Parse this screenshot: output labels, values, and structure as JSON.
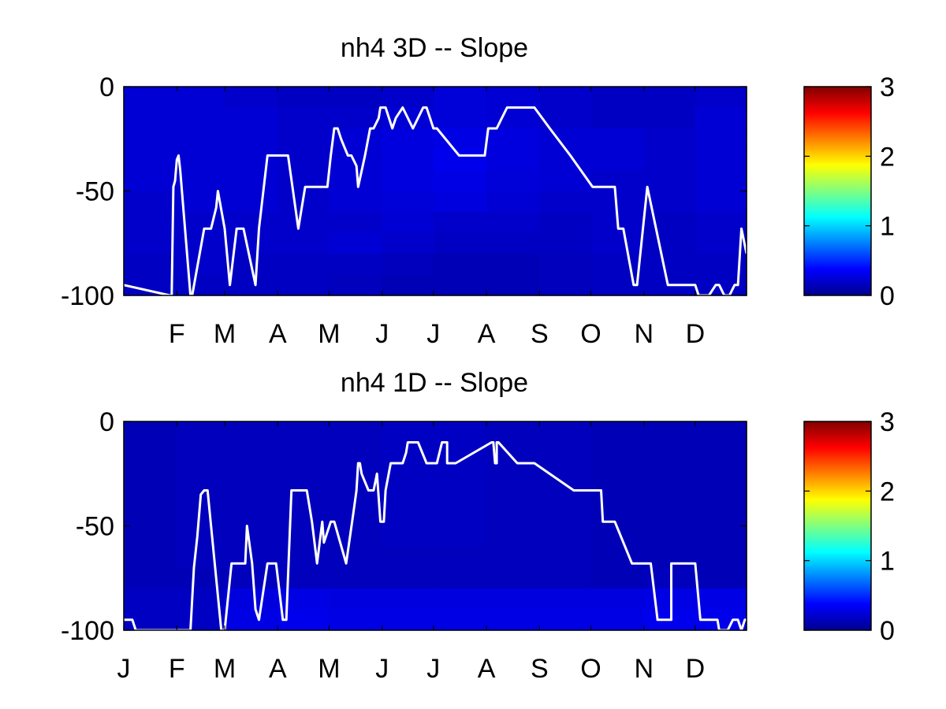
{
  "chart_data": [
    {
      "type": "heatmap",
      "title": "nh4 3D   -- Slope",
      "ylim": [
        -100,
        0
      ],
      "y_ticks": [
        "0",
        "-50",
        "-100"
      ],
      "y_tick_values": [
        0,
        -50,
        -100
      ],
      "x_ticks": [
        "F",
        "M",
        "A",
        "M",
        "J",
        "J",
        "A",
        "S",
        "O",
        "N",
        "D"
      ],
      "x_tick_months": [
        2,
        3,
        4,
        5,
        6,
        7,
        8,
        9,
        10,
        11,
        12
      ],
      "colorbar": {
        "min": 0,
        "max": 3,
        "ticks": [
          "0",
          "1",
          "2",
          "3"
        ],
        "tick_values": [
          0,
          1,
          2,
          3
        ],
        "colormap": "jet"
      },
      "depth_bins": [
        -5,
        -15,
        -25,
        -35,
        -45,
        -55,
        -65,
        -75,
        -85,
        -95
      ],
      "months": [
        "Jan",
        "Feb",
        "Mar",
        "Apr",
        "May",
        "Jun",
        "Jul",
        "Aug",
        "Sep",
        "Oct",
        "Nov",
        "Dec"
      ],
      "values": [
        [
          0.25,
          0.25,
          0.22,
          0.2,
          0.2,
          0.22,
          0.26,
          0.25,
          0.22,
          0.2,
          0.2,
          0.22
        ],
        [
          0.25,
          0.25,
          0.25,
          0.22,
          0.22,
          0.25,
          0.26,
          0.25,
          0.22,
          0.2,
          0.2,
          0.25
        ],
        [
          0.25,
          0.25,
          0.25,
          0.22,
          0.25,
          0.28,
          0.3,
          0.28,
          0.25,
          0.25,
          0.22,
          0.25
        ],
        [
          0.25,
          0.25,
          0.25,
          0.22,
          0.25,
          0.28,
          0.32,
          0.28,
          0.25,
          0.25,
          0.22,
          0.25
        ],
        [
          0.25,
          0.25,
          0.25,
          0.22,
          0.25,
          0.28,
          0.3,
          0.26,
          0.25,
          0.22,
          0.22,
          0.25
        ],
        [
          0.22,
          0.25,
          0.25,
          0.22,
          0.25,
          0.26,
          0.28,
          0.25,
          0.22,
          0.22,
          0.22,
          0.25
        ],
        [
          0.22,
          0.22,
          0.22,
          0.22,
          0.22,
          0.25,
          0.22,
          0.22,
          0.2,
          0.22,
          0.2,
          0.22
        ],
        [
          0.22,
          0.22,
          0.22,
          0.22,
          0.25,
          0.22,
          0.2,
          0.2,
          0.2,
          0.22,
          0.2,
          0.22
        ],
        [
          0.2,
          0.22,
          0.2,
          0.2,
          0.2,
          0.18,
          0.16,
          0.16,
          0.18,
          0.2,
          0.2,
          0.2
        ],
        [
          0.2,
          0.2,
          0.2,
          0.2,
          0.18,
          0.16,
          0.16,
          0.16,
          0.18,
          0.2,
          0.2,
          0.2
        ]
      ],
      "line": {
        "color": "#ffffff",
        "x_day": [
          1,
          28,
          29,
          30,
          31,
          32,
          33,
          34,
          40,
          41,
          48,
          50,
          52,
          55,
          56,
          60,
          63,
          67,
          68,
          71,
          78,
          80,
          85,
          88,
          96,
          97,
          103,
          107,
          108,
          115,
          120,
          122,
          124,
          126,
          128,
          132,
          134,
          137,
          138,
          142,
          145,
          147,
          150,
          151,
          154,
          156,
          158,
          160,
          164,
          170,
          176,
          178,
          180,
          182,
          184,
          197,
          212,
          214,
          219,
          225,
          227,
          231,
          241,
          250,
          262,
          275,
          279,
          288,
          290,
          293,
          299,
          301,
          307,
          319,
          335,
          337,
          339,
          341,
          343,
          347,
          349,
          352,
          355,
          358,
          360,
          362,
          365
        ],
        "y": [
          -95,
          -100,
          -100,
          -48,
          -45,
          -35,
          -33,
          -40,
          -100,
          -100,
          -68,
          -68,
          -68,
          -58,
          -50,
          -68,
          -95,
          -68,
          -68,
          -68,
          -95,
          -68,
          -33,
          -33,
          -33,
          -33,
          -68,
          -48,
          -48,
          -48,
          -48,
          -33,
          -20,
          -20,
          -25,
          -33,
          -33,
          -38,
          -48,
          -33,
          -20,
          -20,
          -15,
          -10,
          -10,
          -15,
          -20,
          -15,
          -10,
          -20,
          -10,
          -10,
          -15,
          -20,
          -20,
          -33,
          -33,
          -20,
          -20,
          -10,
          -10,
          -10,
          -10,
          -20,
          -33,
          -48,
          -48,
          -48,
          -68,
          -68,
          -95,
          -95,
          -48,
          -95,
          -95,
          -100,
          -100,
          -100,
          -100,
          -95,
          -95,
          -100,
          -100,
          -95,
          -95,
          -68,
          -80
        ]
      }
    },
    {
      "type": "heatmap",
      "title": "nh4 1D   -- Slope",
      "ylim": [
        -100,
        0
      ],
      "y_ticks": [
        "0",
        "-50",
        "-100"
      ],
      "y_tick_values": [
        0,
        -50,
        -100
      ],
      "x_ticks": [
        "J",
        "F",
        "M",
        "A",
        "M",
        "J",
        "J",
        "A",
        "S",
        "O",
        "N",
        "D"
      ],
      "x_tick_months": [
        1,
        2,
        3,
        4,
        5,
        6,
        7,
        8,
        9,
        10,
        11,
        12
      ],
      "colorbar": {
        "min": 0,
        "max": 3,
        "ticks": [
          "0",
          "1",
          "2",
          "3"
        ],
        "tick_values": [
          0,
          1,
          2,
          3
        ],
        "colormap": "jet"
      },
      "depth_bins": [
        -5,
        -15,
        -25,
        -35,
        -45,
        -55,
        -65,
        -75,
        -85,
        -95
      ],
      "months": [
        "Jan",
        "Feb",
        "Mar",
        "Apr",
        "May",
        "Jun",
        "Jul",
        "Aug",
        "Sep",
        "Oct",
        "Nov",
        "Dec"
      ],
      "values": [
        [
          0.16,
          0.18,
          0.18,
          0.18,
          0.18,
          0.2,
          0.2,
          0.18,
          0.18,
          0.16,
          0.16,
          0.16
        ],
        [
          0.16,
          0.18,
          0.18,
          0.18,
          0.18,
          0.2,
          0.2,
          0.18,
          0.18,
          0.16,
          0.16,
          0.16
        ],
        [
          0.16,
          0.18,
          0.18,
          0.18,
          0.18,
          0.2,
          0.2,
          0.18,
          0.18,
          0.16,
          0.16,
          0.16
        ],
        [
          0.16,
          0.18,
          0.18,
          0.18,
          0.18,
          0.2,
          0.2,
          0.18,
          0.18,
          0.16,
          0.16,
          0.16
        ],
        [
          0.16,
          0.18,
          0.18,
          0.18,
          0.18,
          0.2,
          0.2,
          0.18,
          0.18,
          0.16,
          0.16,
          0.16
        ],
        [
          0.16,
          0.18,
          0.18,
          0.18,
          0.18,
          0.2,
          0.2,
          0.18,
          0.18,
          0.16,
          0.16,
          0.16
        ],
        [
          0.16,
          0.18,
          0.18,
          0.18,
          0.18,
          0.18,
          0.18,
          0.18,
          0.18,
          0.16,
          0.16,
          0.16
        ],
        [
          0.16,
          0.16,
          0.18,
          0.18,
          0.18,
          0.18,
          0.18,
          0.18,
          0.18,
          0.16,
          0.18,
          0.16
        ],
        [
          0.2,
          0.2,
          0.28,
          0.3,
          0.28,
          0.28,
          0.28,
          0.28,
          0.28,
          0.28,
          0.3,
          0.3
        ],
        [
          0.2,
          0.2,
          0.3,
          0.32,
          0.3,
          0.3,
          0.3,
          0.3,
          0.3,
          0.3,
          0.32,
          0.32
        ]
      ],
      "line": {
        "color": "#ffffff",
        "x_day": [
          1,
          6,
          8,
          40,
          41,
          42,
          44,
          46,
          48,
          50,
          52,
          58,
          59,
          60,
          64,
          67,
          70,
          72,
          73,
          76,
          78,
          80,
          85,
          89,
          90,
          94,
          96,
          99,
          101,
          105,
          108,
          111,
          114,
          117,
          118,
          122,
          124,
          131,
          135,
          137,
          138,
          139,
          140,
          144,
          147,
          149,
          151,
          153,
          154,
          157,
          160,
          162,
          164,
          166,
          167,
          173,
          178,
          184,
          187,
          190,
          190,
          195,
          216,
          217,
          217,
          218,
          219,
          219,
          220,
          231,
          241,
          264,
          278,
          279,
          280,
          281,
          282,
          288,
          298,
          307,
          309,
          313,
          321,
          321,
          334,
          335,
          338,
          339,
          340,
          342,
          346,
          348,
          349,
          350,
          352,
          354,
          357,
          360,
          362,
          364,
          365
        ],
        "y": [
          -95,
          -95,
          -100,
          -100,
          -85,
          -70,
          -55,
          -35,
          -33,
          -33,
          -50,
          -100,
          -100,
          -100,
          -68,
          -68,
          -68,
          -68,
          -50,
          -68,
          -90,
          -95,
          -68,
          -68,
          -68,
          -95,
          -95,
          -33,
          -33,
          -33,
          -33,
          -48,
          -68,
          -48,
          -58,
          -48,
          -48,
          -68,
          -45,
          -33,
          -20,
          -20,
          -25,
          -33,
          -33,
          -25,
          -48,
          -48,
          -33,
          -20,
          -20,
          -20,
          -20,
          -15,
          -10,
          -10,
          -20,
          -20,
          -10,
          -10,
          -20,
          -20,
          -10,
          -10,
          -10,
          -20,
          -20,
          -10,
          -10,
          -20,
          -20,
          -33,
          -33,
          -33,
          -33,
          -48,
          -48,
          -48,
          -68,
          -68,
          -68,
          -95,
          -95,
          -68,
          -68,
          -68,
          -95,
          -95,
          -95,
          -95,
          -95,
          -95,
          -100,
          -100,
          -100,
          -100,
          -95,
          -95,
          -100,
          -95,
          -95
        ]
      }
    }
  ]
}
